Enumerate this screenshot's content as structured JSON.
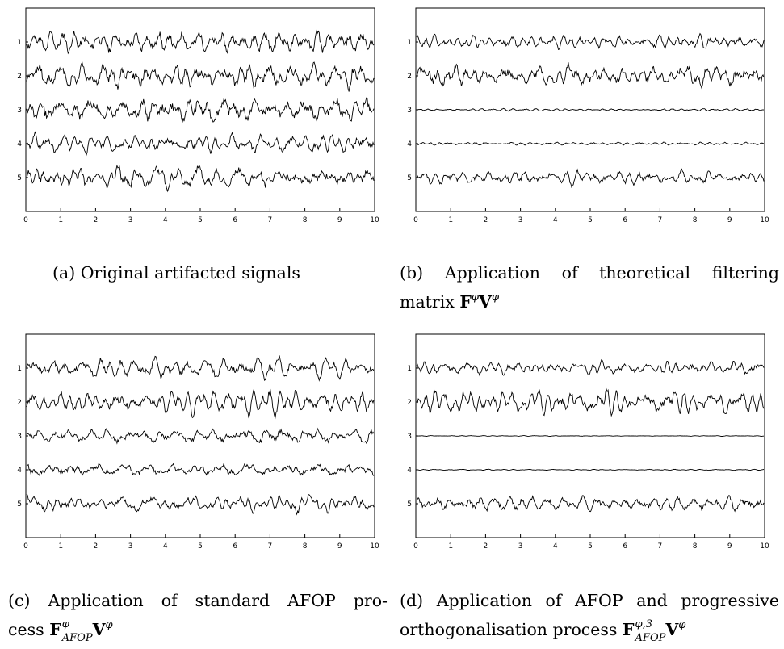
{
  "figure": {
    "captions": {
      "a": {
        "tag": "(a)",
        "text": "Original artifacted signals"
      },
      "b": {
        "tag": "(b)",
        "line1": "Application of theoretical filtering",
        "line2_text": "matrix",
        "math_main_1": "F",
        "math_sup_1": "φ",
        "math_main_2": "V",
        "math_sup_2": "φ"
      },
      "c": {
        "tag": "(c)",
        "line1": "Application of standard AFOP pro-",
        "line2_text": "cess",
        "math_main_1": "F",
        "math_sup_1": "φ",
        "math_sub_1": "AFOP",
        "math_main_2": "V",
        "math_sup_2": "φ"
      },
      "d": {
        "tag": "(d)",
        "line1": "Application of AFOP and progressive",
        "line2_text": "orthogonalisation process",
        "math_main_1": "F",
        "math_sup_1": "φ,3",
        "math_sub_1": "AFOP",
        "math_main_2": "V",
        "math_sup_2": "φ"
      }
    }
  },
  "chart_data": [
    {
      "type": "line",
      "panel": "a",
      "x_range": [
        0,
        10
      ],
      "x_ticks": [
        0,
        1,
        2,
        3,
        4,
        5,
        6,
        7,
        8,
        9,
        10
      ],
      "channel_labels": [
        "1",
        "2",
        "3",
        "4",
        "5"
      ],
      "series": [
        {
          "channel": "1",
          "amplitude": 0.55,
          "seed": 11
        },
        {
          "channel": "2",
          "amplitude": 0.75,
          "seed": 12
        },
        {
          "channel": "3",
          "amplitude": 0.6,
          "seed": 13
        },
        {
          "channel": "4",
          "amplitude": 0.55,
          "seed": 14
        },
        {
          "channel": "5",
          "amplitude": 0.65,
          "seed": 15
        }
      ]
    },
    {
      "type": "line",
      "panel": "b",
      "x_range": [
        0,
        10
      ],
      "x_ticks": [
        0,
        1,
        2,
        3,
        4,
        5,
        6,
        7,
        8,
        9,
        10
      ],
      "channel_labels": [
        "1",
        "2",
        "3",
        "4",
        "5"
      ],
      "series": [
        {
          "channel": "1",
          "amplitude": 0.4,
          "seed": 21
        },
        {
          "channel": "2",
          "amplitude": 0.65,
          "seed": 22
        },
        {
          "channel": "3",
          "amplitude": 0.07,
          "seed": 23
        },
        {
          "channel": "4",
          "amplitude": 0.08,
          "seed": 24
        },
        {
          "channel": "5",
          "amplitude": 0.45,
          "seed": 25
        }
      ]
    },
    {
      "type": "line",
      "panel": "c",
      "x_range": [
        0,
        10
      ],
      "x_ticks": [
        0,
        1,
        2,
        3,
        4,
        5,
        6,
        7,
        8,
        9,
        10
      ],
      "channel_labels": [
        "1",
        "2",
        "3",
        "4",
        "5"
      ],
      "series": [
        {
          "channel": "1",
          "amplitude": 0.6,
          "seed": 31
        },
        {
          "channel": "2",
          "amplitude": 0.75,
          "seed": 32
        },
        {
          "channel": "3",
          "amplitude": 0.35,
          "seed": 33
        },
        {
          "channel": "4",
          "amplitude": 0.3,
          "seed": 34
        },
        {
          "channel": "5",
          "amplitude": 0.5,
          "seed": 35
        }
      ]
    },
    {
      "type": "line",
      "panel": "d",
      "x_range": [
        0,
        10
      ],
      "x_ticks": [
        0,
        1,
        2,
        3,
        4,
        5,
        6,
        7,
        8,
        9,
        10
      ],
      "channel_labels": [
        "1",
        "2",
        "3",
        "4",
        "5"
      ],
      "series": [
        {
          "channel": "1",
          "amplitude": 0.4,
          "seed": 41
        },
        {
          "channel": "2",
          "amplitude": 0.65,
          "seed": 42
        },
        {
          "channel": "3",
          "amplitude": 0.02,
          "seed": 43
        },
        {
          "channel": "4",
          "amplitude": 0.03,
          "seed": 44
        },
        {
          "channel": "5",
          "amplitude": 0.4,
          "seed": 45
        }
      ]
    }
  ]
}
